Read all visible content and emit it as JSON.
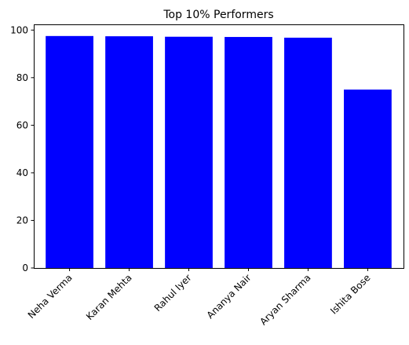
{
  "chart_data": {
    "type": "bar",
    "title": "Top 10% Performers",
    "xlabel": "",
    "ylabel": "",
    "categories": [
      "Neha Verma",
      "Karan Mehta",
      "Rahul Iyer",
      "Ananya Nair",
      "Aryan Sharma",
      "Ishita Bose"
    ],
    "values": [
      97.5,
      97.4,
      97.2,
      97.1,
      96.8,
      75
    ],
    "ylim": [
      0,
      102.4
    ],
    "yticks": [
      0,
      20,
      40,
      60,
      80,
      100
    ],
    "bar_color": "#0000ff",
    "grid": false,
    "legend": "none"
  }
}
